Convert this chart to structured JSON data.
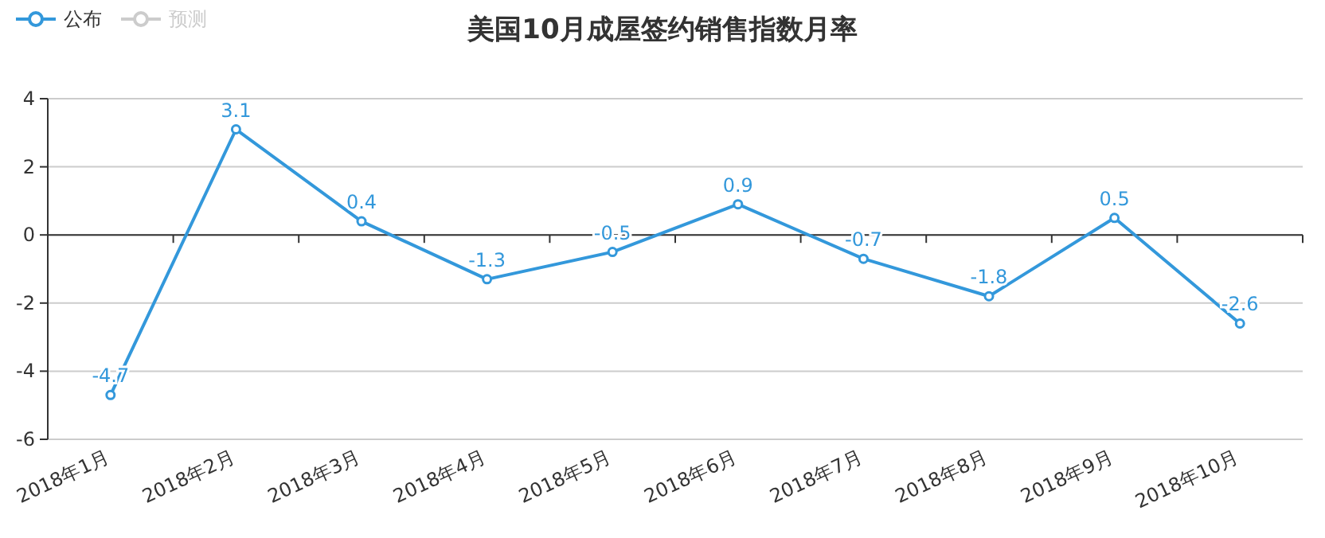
{
  "chart_data": {
    "type": "line",
    "title": "美国10月成屋签约销售指数月率",
    "categories": [
      "2018年1月",
      "2018年2月",
      "2018年3月",
      "2018年4月",
      "2018年5月",
      "2018年6月",
      "2018年7月",
      "2018年8月",
      "2018年9月",
      "2018年10月"
    ],
    "series": [
      {
        "name": "公布",
        "color": "#3398db",
        "values": [
          -4.7,
          3.1,
          0.4,
          -1.3,
          -0.5,
          0.9,
          -0.7,
          -1.8,
          0.5,
          -2.6
        ]
      },
      {
        "name": "预测",
        "color": "#cccccc",
        "values": [
          null,
          null,
          null,
          null,
          null,
          null,
          null,
          null,
          null,
          null
        ]
      }
    ],
    "ylim": [
      -6,
      4
    ],
    "yticks": [
      -6,
      -4,
      -2,
      0,
      2,
      4
    ],
    "grid": "y",
    "legend": "top left",
    "marker": "circle",
    "line_style": "solid",
    "data_labels": true
  }
}
